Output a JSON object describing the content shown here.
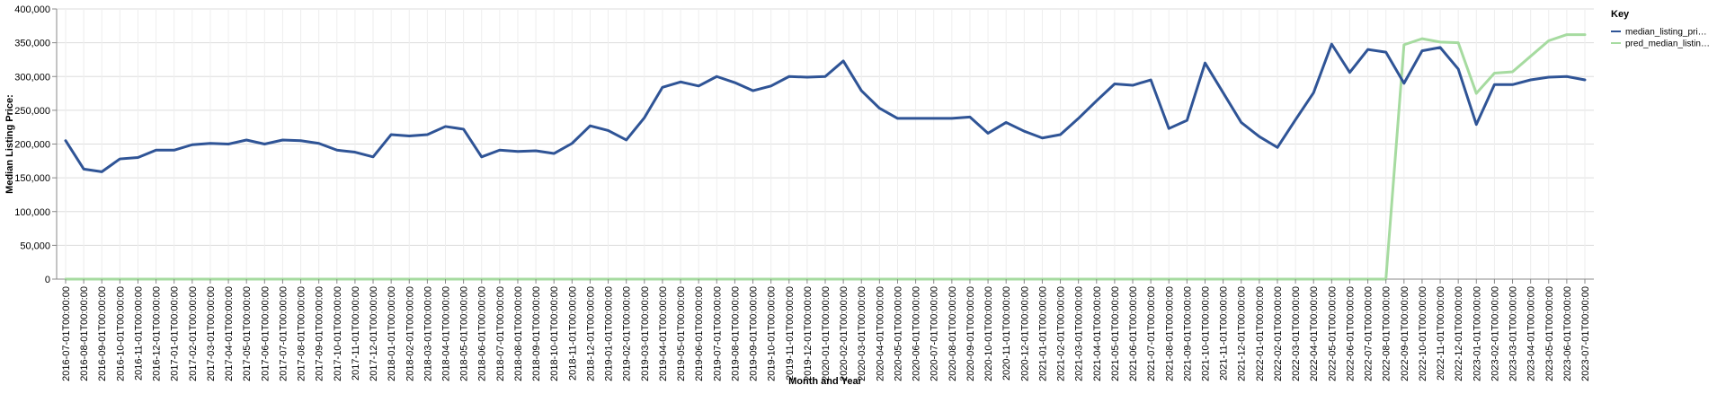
{
  "chart_data": {
    "type": "line",
    "xlabel": "Month and Year",
    "ylabel": "Median Listing Price:",
    "ylim": [
      0,
      400000
    ],
    "y_ticks": [
      "0",
      "50,000",
      "100,000",
      "150,000",
      "200,000",
      "250,000",
      "300,000",
      "350,000",
      "400,000"
    ],
    "grid": true,
    "legend": {
      "title": "Key",
      "position": "right"
    },
    "x": [
      "2016-07-01T00:00:00",
      "2016-08-01T00:00:00",
      "2016-09-01T00:00:00",
      "2016-10-01T00:00:00",
      "2016-11-01T00:00:00",
      "2016-12-01T00:00:00",
      "2017-01-01T00:00:00",
      "2017-02-01T00:00:00",
      "2017-03-01T00:00:00",
      "2017-04-01T00:00:00",
      "2017-05-01T00:00:00",
      "2017-06-01T00:00:00",
      "2017-07-01T00:00:00",
      "2017-08-01T00:00:00",
      "2017-09-01T00:00:00",
      "2017-10-01T00:00:00",
      "2017-11-01T00:00:00",
      "2017-12-01T00:00:00",
      "2018-01-01T00:00:00",
      "2018-02-01T00:00:00",
      "2018-03-01T00:00:00",
      "2018-04-01T00:00:00",
      "2018-05-01T00:00:00",
      "2018-06-01T00:00:00",
      "2018-07-01T00:00:00",
      "2018-08-01T00:00:00",
      "2018-09-01T00:00:00",
      "2018-10-01T00:00:00",
      "2018-11-01T00:00:00",
      "2018-12-01T00:00:00",
      "2019-01-01T00:00:00",
      "2019-02-01T00:00:00",
      "2019-03-01T00:00:00",
      "2019-04-01T00:00:00",
      "2019-05-01T00:00:00",
      "2019-06-01T00:00:00",
      "2019-07-01T00:00:00",
      "2019-08-01T00:00:00",
      "2019-09-01T00:00:00",
      "2019-10-01T00:00:00",
      "2019-11-01T00:00:00",
      "2019-12-01T00:00:00",
      "2020-01-01T00:00:00",
      "2020-02-01T00:00:00",
      "2020-03-01T00:00:00",
      "2020-04-01T00:00:00",
      "2020-05-01T00:00:00",
      "2020-06-01T00:00:00",
      "2020-07-01T00:00:00",
      "2020-08-01T00:00:00",
      "2020-09-01T00:00:00",
      "2020-10-01T00:00:00",
      "2020-11-01T00:00:00",
      "2020-12-01T00:00:00",
      "2021-01-01T00:00:00",
      "2021-02-01T00:00:00",
      "2021-03-01T00:00:00",
      "2021-04-01T00:00:00",
      "2021-05-01T00:00:00",
      "2021-06-01T00:00:00",
      "2021-07-01T00:00:00",
      "2021-08-01T00:00:00",
      "2021-09-01T00:00:00",
      "2021-10-01T00:00:00",
      "2021-11-01T00:00:00",
      "2021-12-01T00:00:00",
      "2022-01-01T00:00:00",
      "2022-02-01T00:00:00",
      "2022-03-01T00:00:00",
      "2022-04-01T00:00:00",
      "2022-05-01T00:00:00",
      "2022-06-01T00:00:00",
      "2022-07-01T00:00:00",
      "2022-08-01T00:00:00",
      "2022-09-01T00:00:00",
      "2022-10-01T00:00:00",
      "2022-11-01T00:00:00",
      "2022-12-01T00:00:00",
      "2023-01-01T00:00:00",
      "2023-02-01T00:00:00",
      "2023-03-01T00:00:00",
      "2023-04-01T00:00:00",
      "2023-05-01T00:00:00",
      "2023-06-01T00:00:00",
      "2023-07-01T00:00:00"
    ],
    "series": [
      {
        "name": "median_listing_pri…",
        "color": "#2f5496",
        "values": [
          205000,
          163000,
          159000,
          178000,
          180000,
          191000,
          191000,
          199000,
          201000,
          200000,
          206000,
          200000,
          206000,
          205000,
          201000,
          191000,
          188000,
          181000,
          214000,
          212000,
          214000,
          226000,
          222000,
          181000,
          191000,
          189000,
          190000,
          186000,
          201000,
          227000,
          220000,
          206000,
          239000,
          284000,
          292000,
          286000,
          300000,
          291000,
          279000,
          286000,
          300000,
          299000,
          300000,
          323000,
          279000,
          253000,
          238000,
          238000,
          238000,
          238000,
          240000,
          216000,
          232000,
          219000,
          209000,
          214000,
          238000,
          264000,
          289000,
          287000,
          295000,
          223000,
          235000,
          320000,
          276000,
          232000,
          211000,
          195000,
          236000,
          276000,
          348000,
          306000,
          340000,
          336000,
          290000,
          338000,
          343000,
          311000,
          229000,
          288000,
          288000,
          295000,
          299000,
          300000,
          295000
        ]
      },
      {
        "name": "pred_median_listin…",
        "color": "#a6dba0",
        "values": [
          0,
          0,
          0,
          0,
          0,
          0,
          0,
          0,
          0,
          0,
          0,
          0,
          0,
          0,
          0,
          0,
          0,
          0,
          0,
          0,
          0,
          0,
          0,
          0,
          0,
          0,
          0,
          0,
          0,
          0,
          0,
          0,
          0,
          0,
          0,
          0,
          0,
          0,
          0,
          0,
          0,
          0,
          0,
          0,
          0,
          0,
          0,
          0,
          0,
          0,
          0,
          0,
          0,
          0,
          0,
          0,
          0,
          0,
          0,
          0,
          0,
          0,
          0,
          0,
          0,
          0,
          0,
          0,
          0,
          0,
          0,
          0,
          0,
          0,
          347000,
          356000,
          351000,
          350000,
          275000,
          305000,
          307000,
          330000,
          353000,
          362000,
          362000
        ]
      }
    ]
  }
}
